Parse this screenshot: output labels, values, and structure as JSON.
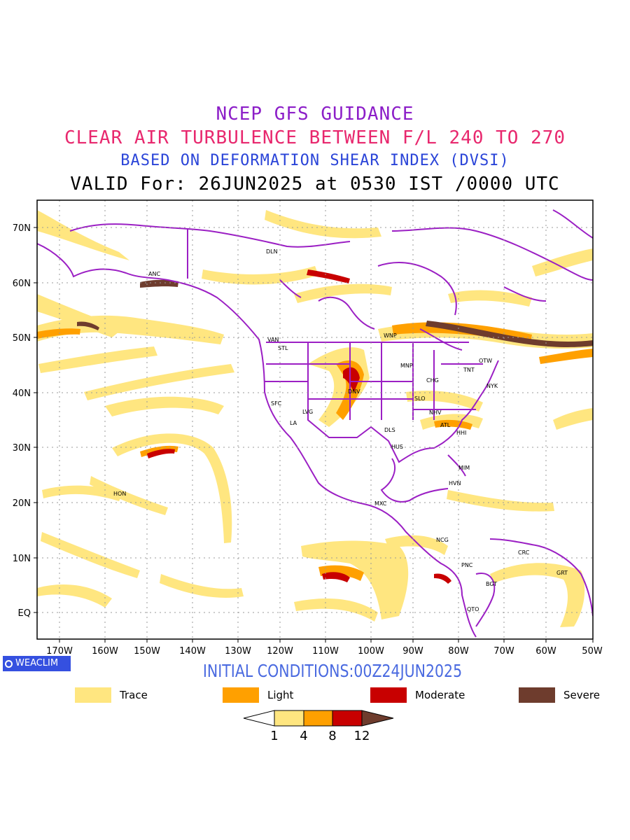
{
  "titles": {
    "line1": "NCEP GFS GUIDANCE",
    "line2": "CLEAR AIR TURBULENCE BETWEEN F/L 240 TO 270",
    "line3": "BASED ON DEFORMATION SHEAR INDEX (DVSI)",
    "line4": "VALID For: 26JUN2025 at 0530 IST /0000 UTC"
  },
  "initial_conditions": "INITIAL CONDITIONS:00Z24JUN2025",
  "brand": "WEACLIM",
  "colors": {
    "trace": "#ffe680",
    "light": "#ffa000",
    "moderate": "#c80000",
    "severe": "#6e3c2d",
    "borders": "#9b1fc4",
    "title1": "#8c1ec8",
    "title2": "#e8286e",
    "title3": "#2a44d8"
  },
  "legend": [
    {
      "label": "Trace",
      "color": "#ffe680"
    },
    {
      "label": "Light",
      "color": "#ffa000"
    },
    {
      "label": "Moderate",
      "color": "#c80000"
    },
    {
      "label": "Severe",
      "color": "#6e3c2d"
    }
  ],
  "colorbar": {
    "thresholds": [
      "1",
      "4",
      "8",
      "12"
    ]
  },
  "axes": {
    "lon_ticks": [
      "170W",
      "160W",
      "150W",
      "140W",
      "130W",
      "120W",
      "110W",
      "100W",
      "90W",
      "80W",
      "70W",
      "60W",
      "50W"
    ],
    "lat_ticks": [
      "70N",
      "60N",
      "50N",
      "40N",
      "30N",
      "20N",
      "10N",
      "EQ"
    ]
  },
  "stations": [
    "DLN",
    "ANC",
    "VAN",
    "STL",
    "WNP",
    "MNP",
    "TNT",
    "OTW",
    "NYK",
    "CHG",
    "SLO",
    "DNV",
    "SFC",
    "LVG",
    "LA",
    "DLS",
    "NHV",
    "ATL",
    "HHI",
    "HUS",
    "MIM",
    "HVN",
    "HON",
    "MXC",
    "NCG",
    "CRC",
    "PNC",
    "GRT",
    "BGT",
    "QTO"
  ]
}
